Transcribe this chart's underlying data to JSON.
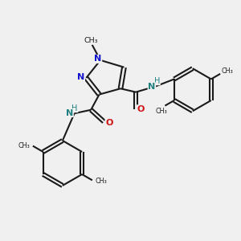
{
  "bg_color": "#f0f0f0",
  "bond_color": "#1a1a1a",
  "n_color": "#1414cc",
  "o_color": "#cc1414",
  "nh_color": "#208080",
  "lw": 1.5,
  "fig_size": [
    3.0,
    3.0
  ],
  "dpi": 100,
  "xlim": [
    0,
    10
  ],
  "ylim": [
    0,
    10
  ]
}
